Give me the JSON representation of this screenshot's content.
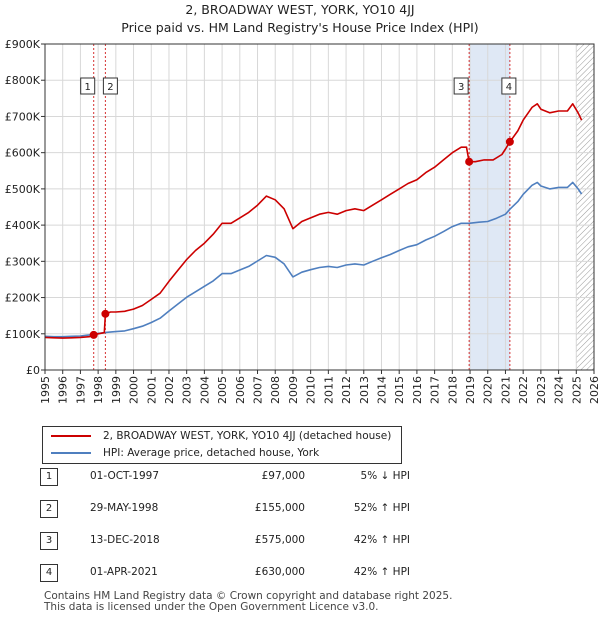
{
  "title_line1": "2, BROADWAY WEST, YORK, YO10 4JJ",
  "title_line2": "Price paid vs. HM Land Registry's House Price Index (HPI)",
  "colors": {
    "property": "#cc0000",
    "hpi": "#4f7fbf",
    "shade": "#dfe8f5",
    "vline": "#cc0000",
    "grid": "#d8d8d8",
    "hatch": "#999999"
  },
  "chart_data": {
    "type": "line",
    "xlim": [
      1995,
      2026
    ],
    "ylim": [
      0,
      900000
    ],
    "x_ticks": [
      "1995",
      "1996",
      "1997",
      "1998",
      "1999",
      "2000",
      "2001",
      "2002",
      "2003",
      "2004",
      "2005",
      "2006",
      "2007",
      "2008",
      "2009",
      "2010",
      "2011",
      "2012",
      "2013",
      "2014",
      "2015",
      "2016",
      "2017",
      "2018",
      "2019",
      "2020",
      "2021",
      "2022",
      "2023",
      "2024",
      "2025",
      "2026"
    ],
    "y_ticks": [
      {
        "value": 0,
        "label": "£0"
      },
      {
        "value": 100000,
        "label": "£100K"
      },
      {
        "value": 200000,
        "label": "£200K"
      },
      {
        "value": 300000,
        "label": "£300K"
      },
      {
        "value": 400000,
        "label": "£400K"
      },
      {
        "value": 500000,
        "label": "£500K"
      },
      {
        "value": 600000,
        "label": "£600K"
      },
      {
        "value": 700000,
        "label": "£700K"
      },
      {
        "value": 800000,
        "label": "£800K"
      },
      {
        "value": 900000,
        "label": "£900K"
      }
    ],
    "shaded_range": [
      2018.95,
      2021.25
    ],
    "hatch_from": 2025.0,
    "series": [
      {
        "name": "2, BROADWAY WEST, YORK, YO10 4JJ (detached house)",
        "color": "#cc0000",
        "points": [
          [
            1995.0,
            90000
          ],
          [
            1995.5,
            89000
          ],
          [
            1996.0,
            88000
          ],
          [
            1996.5,
            89000
          ],
          [
            1997.0,
            90000
          ],
          [
            1997.5,
            92000
          ],
          [
            1997.75,
            97000
          ],
          [
            1998.0,
            100000
          ],
          [
            1998.35,
            103000
          ],
          [
            1998.41,
            155000
          ],
          [
            1998.7,
            160000
          ],
          [
            1999.0,
            160000
          ],
          [
            1999.5,
            162000
          ],
          [
            2000.0,
            168000
          ],
          [
            2000.5,
            178000
          ],
          [
            2001.0,
            195000
          ],
          [
            2001.5,
            212000
          ],
          [
            2002.0,
            245000
          ],
          [
            2002.5,
            275000
          ],
          [
            2003.0,
            305000
          ],
          [
            2003.5,
            330000
          ],
          [
            2004.0,
            350000
          ],
          [
            2004.5,
            375000
          ],
          [
            2005.0,
            405000
          ],
          [
            2005.5,
            405000
          ],
          [
            2006.0,
            420000
          ],
          [
            2006.5,
            435000
          ],
          [
            2007.0,
            455000
          ],
          [
            2007.5,
            480000
          ],
          [
            2008.0,
            470000
          ],
          [
            2008.5,
            445000
          ],
          [
            2009.0,
            390000
          ],
          [
            2009.5,
            410000
          ],
          [
            2010.0,
            420000
          ],
          [
            2010.5,
            430000
          ],
          [
            2011.0,
            435000
          ],
          [
            2011.5,
            430000
          ],
          [
            2012.0,
            440000
          ],
          [
            2012.5,
            445000
          ],
          [
            2013.0,
            440000
          ],
          [
            2013.5,
            455000
          ],
          [
            2014.0,
            470000
          ],
          [
            2014.5,
            485000
          ],
          [
            2015.0,
            500000
          ],
          [
            2015.5,
            515000
          ],
          [
            2016.0,
            525000
          ],
          [
            2016.5,
            545000
          ],
          [
            2017.0,
            560000
          ],
          [
            2017.5,
            580000
          ],
          [
            2018.0,
            600000
          ],
          [
            2018.5,
            615000
          ],
          [
            2018.8,
            615000
          ],
          [
            2018.95,
            575000
          ],
          [
            2019.3,
            575000
          ],
          [
            2019.8,
            580000
          ],
          [
            2020.3,
            580000
          ],
          [
            2020.8,
            595000
          ],
          [
            2021.0,
            610000
          ],
          [
            2021.25,
            630000
          ],
          [
            2021.7,
            660000
          ],
          [
            2022.0,
            690000
          ],
          [
            2022.5,
            725000
          ],
          [
            2022.8,
            735000
          ],
          [
            2023.0,
            720000
          ],
          [
            2023.5,
            710000
          ],
          [
            2024.0,
            715000
          ],
          [
            2024.5,
            715000
          ],
          [
            2024.8,
            735000
          ],
          [
            2025.1,
            710000
          ],
          [
            2025.3,
            690000
          ]
        ]
      },
      {
        "name": "HPI: Average price, detached house, York",
        "color": "#4f7fbf",
        "points": [
          [
            1995.0,
            93000
          ],
          [
            1995.5,
            92000
          ],
          [
            1996.0,
            92000
          ],
          [
            1996.5,
            93000
          ],
          [
            1997.0,
            94000
          ],
          [
            1997.5,
            97000
          ],
          [
            1998.0,
            101000
          ],
          [
            1998.5,
            104000
          ],
          [
            1999.0,
            106000
          ],
          [
            1999.5,
            108000
          ],
          [
            2000.0,
            114000
          ],
          [
            2000.5,
            121000
          ],
          [
            2001.0,
            131000
          ],
          [
            2001.5,
            143000
          ],
          [
            2002.0,
            163000
          ],
          [
            2002.5,
            182000
          ],
          [
            2003.0,
            201000
          ],
          [
            2003.5,
            216000
          ],
          [
            2004.0,
            231000
          ],
          [
            2004.5,
            246000
          ],
          [
            2005.0,
            266000
          ],
          [
            2005.5,
            266000
          ],
          [
            2006.0,
            276000
          ],
          [
            2006.5,
            286000
          ],
          [
            2007.0,
            301000
          ],
          [
            2007.5,
            316000
          ],
          [
            2008.0,
            311000
          ],
          [
            2008.5,
            293000
          ],
          [
            2009.0,
            257000
          ],
          [
            2009.5,
            270000
          ],
          [
            2010.0,
            277000
          ],
          [
            2010.5,
            283000
          ],
          [
            2011.0,
            286000
          ],
          [
            2011.5,
            283000
          ],
          [
            2012.0,
            290000
          ],
          [
            2012.5,
            293000
          ],
          [
            2013.0,
            290000
          ],
          [
            2013.5,
            300000
          ],
          [
            2014.0,
            310000
          ],
          [
            2014.5,
            319000
          ],
          [
            2015.0,
            330000
          ],
          [
            2015.5,
            340000
          ],
          [
            2016.0,
            346000
          ],
          [
            2016.5,
            359000
          ],
          [
            2017.0,
            369000
          ],
          [
            2017.5,
            382000
          ],
          [
            2018.0,
            396000
          ],
          [
            2018.5,
            405000
          ],
          [
            2018.95,
            405000
          ],
          [
            2019.5,
            408000
          ],
          [
            2020.0,
            410000
          ],
          [
            2020.5,
            419000
          ],
          [
            2021.0,
            430000
          ],
          [
            2021.25,
            444000
          ],
          [
            2021.7,
            465000
          ],
          [
            2022.0,
            485000
          ],
          [
            2022.5,
            510000
          ],
          [
            2022.8,
            518000
          ],
          [
            2023.0,
            508000
          ],
          [
            2023.5,
            500000
          ],
          [
            2024.0,
            504000
          ],
          [
            2024.5,
            504000
          ],
          [
            2024.8,
            518000
          ],
          [
            2025.1,
            500000
          ],
          [
            2025.3,
            486000
          ]
        ]
      }
    ],
    "sales": [
      {
        "n": "1",
        "x": 1997.75,
        "price": 97000
      },
      {
        "n": "2",
        "x": 1998.41,
        "price": 155000
      },
      {
        "n": "3",
        "x": 2018.95,
        "price": 575000
      },
      {
        "n": "4",
        "x": 2021.25,
        "price": 630000
      }
    ]
  },
  "legend": {
    "property_label": "2, BROADWAY WEST, YORK, YO10 4JJ (detached house)",
    "hpi_label": "HPI: Average price, detached house, York"
  },
  "transactions": [
    {
      "n": "1",
      "date": "01-OCT-1997",
      "price": "£97,000",
      "change": "5% ↓ HPI"
    },
    {
      "n": "2",
      "date": "29-MAY-1998",
      "price": "£155,000",
      "change": "52% ↑ HPI"
    },
    {
      "n": "3",
      "date": "13-DEC-2018",
      "price": "£575,000",
      "change": "42% ↑ HPI"
    },
    {
      "n": "4",
      "date": "01-APR-2021",
      "price": "£630,000",
      "change": "42% ↑ HPI"
    }
  ],
  "footer_line1": "Contains HM Land Registry data © Crown copyright and database right 2025.",
  "footer_line2": "This data is licensed under the Open Government Licence v3.0."
}
